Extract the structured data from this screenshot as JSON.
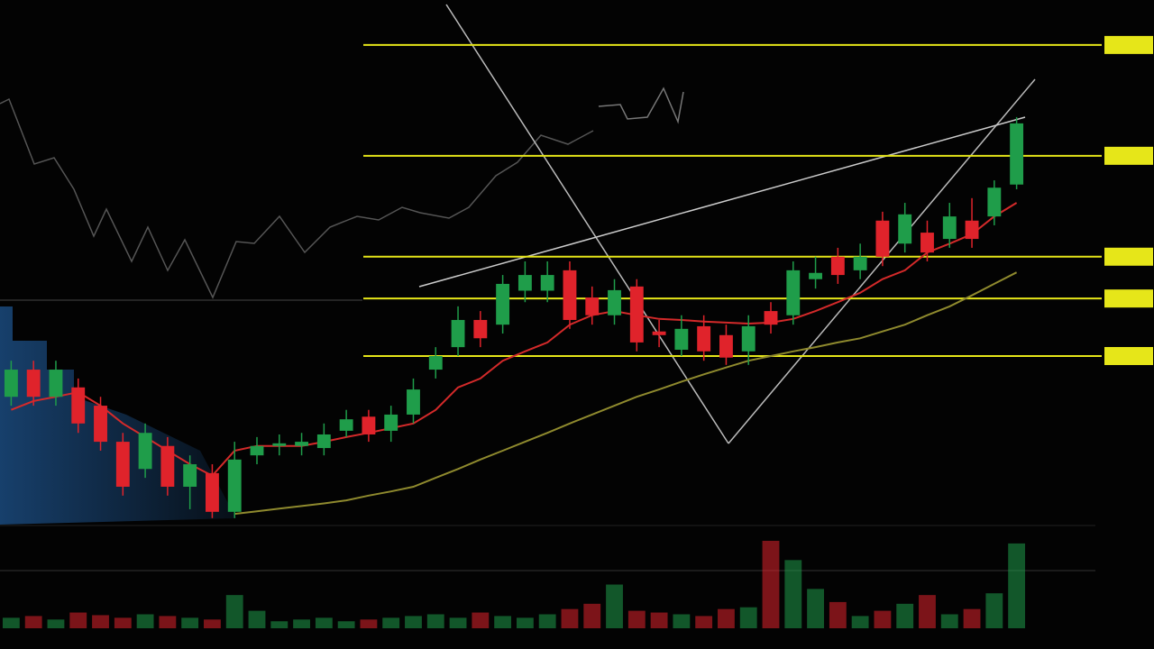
{
  "chart_data": {
    "type": "candlestick",
    "up_color": "#1f9d4a",
    "down_color": "#e0232b",
    "ylim": [
      0,
      100
    ],
    "open": [
      24.1,
      29.3,
      24.1,
      25.9,
      22.4,
      15.5,
      10.3,
      14.7,
      6.9,
      9.5,
      2.1,
      12.9,
      14.7,
      14.7,
      14.3,
      17.6,
      20.3,
      17.6,
      20.7,
      29.3,
      33.6,
      38.8,
      37.9,
      44.4,
      44.4,
      48.3,
      43.1,
      39.7,
      45.2,
      36.6,
      33.1,
      37.6,
      35.9,
      32.8,
      40.5,
      39.7,
      46.6,
      50.9,
      48.3,
      57.8,
      53.4,
      55.5,
      54.3,
      57.8,
      58.6,
      64.7
    ],
    "close": [
      29.3,
      24.1,
      29.3,
      19.0,
      15.5,
      6.9,
      17.2,
      6.9,
      11.2,
      2.1,
      12.1,
      14.7,
      15.2,
      15.5,
      16.9,
      19.8,
      16.9,
      20.7,
      25.5,
      31.9,
      38.8,
      35.3,
      45.7,
      47.4,
      47.4,
      38.8,
      39.7,
      44.5,
      34.5,
      35.9,
      37.1,
      32.8,
      31.6,
      37.6,
      37.9,
      48.3,
      47.8,
      47.4,
      50.9,
      50.9,
      59.0,
      51.7,
      58.6,
      54.3,
      64.1,
      76.4
    ],
    "high": [
      31.0,
      31.0,
      31.0,
      27.6,
      24.1,
      17.2,
      19.0,
      16.4,
      12.9,
      11.2,
      15.5,
      16.4,
      16.9,
      17.2,
      19.0,
      21.6,
      21.6,
      22.4,
      27.6,
      33.6,
      41.4,
      40.5,
      47.4,
      50.0,
      50.0,
      50.0,
      45.2,
      46.6,
      46.6,
      38.8,
      39.7,
      39.7,
      37.9,
      39.7,
      42.2,
      50.0,
      50.9,
      52.6,
      53.4,
      59.5,
      61.2,
      57.8,
      61.2,
      62.1,
      65.5,
      77.6
    ],
    "low": [
      22.4,
      22.4,
      22.4,
      17.2,
      13.8,
      5.2,
      8.6,
      5.2,
      2.6,
      0.9,
      0.9,
      11.2,
      12.9,
      12.9,
      12.9,
      16.4,
      15.5,
      15.5,
      19.0,
      27.6,
      31.9,
      33.6,
      36.2,
      42.2,
      42.2,
      37.1,
      37.9,
      37.9,
      32.8,
      33.6,
      31.9,
      31.0,
      30.2,
      30.2,
      36.2,
      37.9,
      44.8,
      45.7,
      46.6,
      49.1,
      51.7,
      50.0,
      52.6,
      52.6,
      56.9,
      63.8
    ],
    "overlays": [
      {
        "color": "#d42a2a",
        "values": [
          21.6,
          23.3,
          24.1,
          25.0,
          22.4,
          19.0,
          16.4,
          13.8,
          11.2,
          9.0,
          13.8,
          14.7,
          14.7,
          14.7,
          15.5,
          16.4,
          17.2,
          18.1,
          19.0,
          21.6,
          25.9,
          27.6,
          31.0,
          32.8,
          34.5,
          37.9,
          39.7,
          40.5,
          39.7,
          39.0,
          38.8,
          38.5,
          38.3,
          38.1,
          38.3,
          39.0,
          40.5,
          42.2,
          44.0,
          46.6,
          48.3,
          51.7,
          53.4,
          55.2,
          58.6,
          61.2
        ]
      },
      {
        "color": "#8f8a2e",
        "values": [
          null,
          null,
          null,
          null,
          null,
          null,
          null,
          null,
          null,
          null,
          1.7,
          2.2,
          2.7,
          3.2,
          3.7,
          4.3,
          5.2,
          6.0,
          6.9,
          8.6,
          10.3,
          12.1,
          13.8,
          15.5,
          17.2,
          19.0,
          20.7,
          22.4,
          24.1,
          25.5,
          27.0,
          28.4,
          29.7,
          31.0,
          31.9,
          32.8,
          33.6,
          34.5,
          35.3,
          36.6,
          37.9,
          39.7,
          41.4,
          43.5,
          45.7,
          47.9
        ]
      }
    ],
    "levels": [
      91.4,
      70.2,
      50.9,
      42.9,
      31.9
    ],
    "level_color": "#e6e619",
    "volume": {
      "ylim": [
        0,
        100
      ],
      "values": [
        12,
        14,
        10,
        18,
        15,
        12,
        16,
        14,
        12,
        10,
        38,
        20,
        8,
        10,
        12,
        8,
        10,
        12,
        14,
        16,
        12,
        18,
        14,
        12,
        16,
        22,
        28,
        50,
        20,
        18,
        16,
        14,
        22,
        24,
        100,
        78,
        45,
        30,
        14,
        20,
        28,
        38,
        16,
        22,
        40,
        97
      ]
    }
  }
}
